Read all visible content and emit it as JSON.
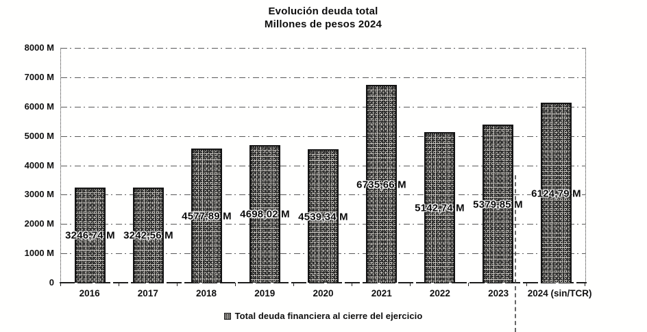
{
  "title": {
    "line1": "Evolución deuda total",
    "line2": "Millones de pesos 2024"
  },
  "legend": {
    "marker": "hatched-square-icon",
    "label": "Total deuda financiera al cierre del ejercicio"
  },
  "chart_data": {
    "type": "bar",
    "title": "Evolución deuda total",
    "subtitle": "Millones de pesos 2024",
    "categories": [
      "2016",
      "2017",
      "2018",
      "2019",
      "2020",
      "2021",
      "2022",
      "2023",
      "2024 (sin/TCR)"
    ],
    "series": [
      {
        "name": "Total deuda financiera al cierre del ejercicio",
        "values": [
          3246.74,
          3242.56,
          4577.89,
          4698.02,
          4539.34,
          6735.66,
          5142.74,
          5379.85,
          6124.79
        ]
      }
    ],
    "value_labels": [
      "3246,74 M",
      "3242,56 M",
      "4577,89 M",
      "4698,02 M",
      "4539,34 M",
      "6735,66 M",
      "5142,74 M",
      "5379,85 M",
      "6124,79 M"
    ],
    "xlabel": "",
    "ylabel": "",
    "ylim": [
      0,
      8000
    ],
    "y_tick_step": 1000,
    "y_tick_labels": [
      "0",
      "1000 M",
      "2000 M",
      "3000 M",
      "4000 M",
      "5000 M",
      "6000 M",
      "7000 M",
      "8000 M"
    ],
    "grid": true,
    "gridline_style": "dash-dot",
    "legend_position": "bottom",
    "bar_fill": "speckled-gray",
    "bar_color": "#b5b2ad",
    "bar_border_color": "#131313",
    "text_color": "#121212",
    "background_color": "#ffffff"
  }
}
